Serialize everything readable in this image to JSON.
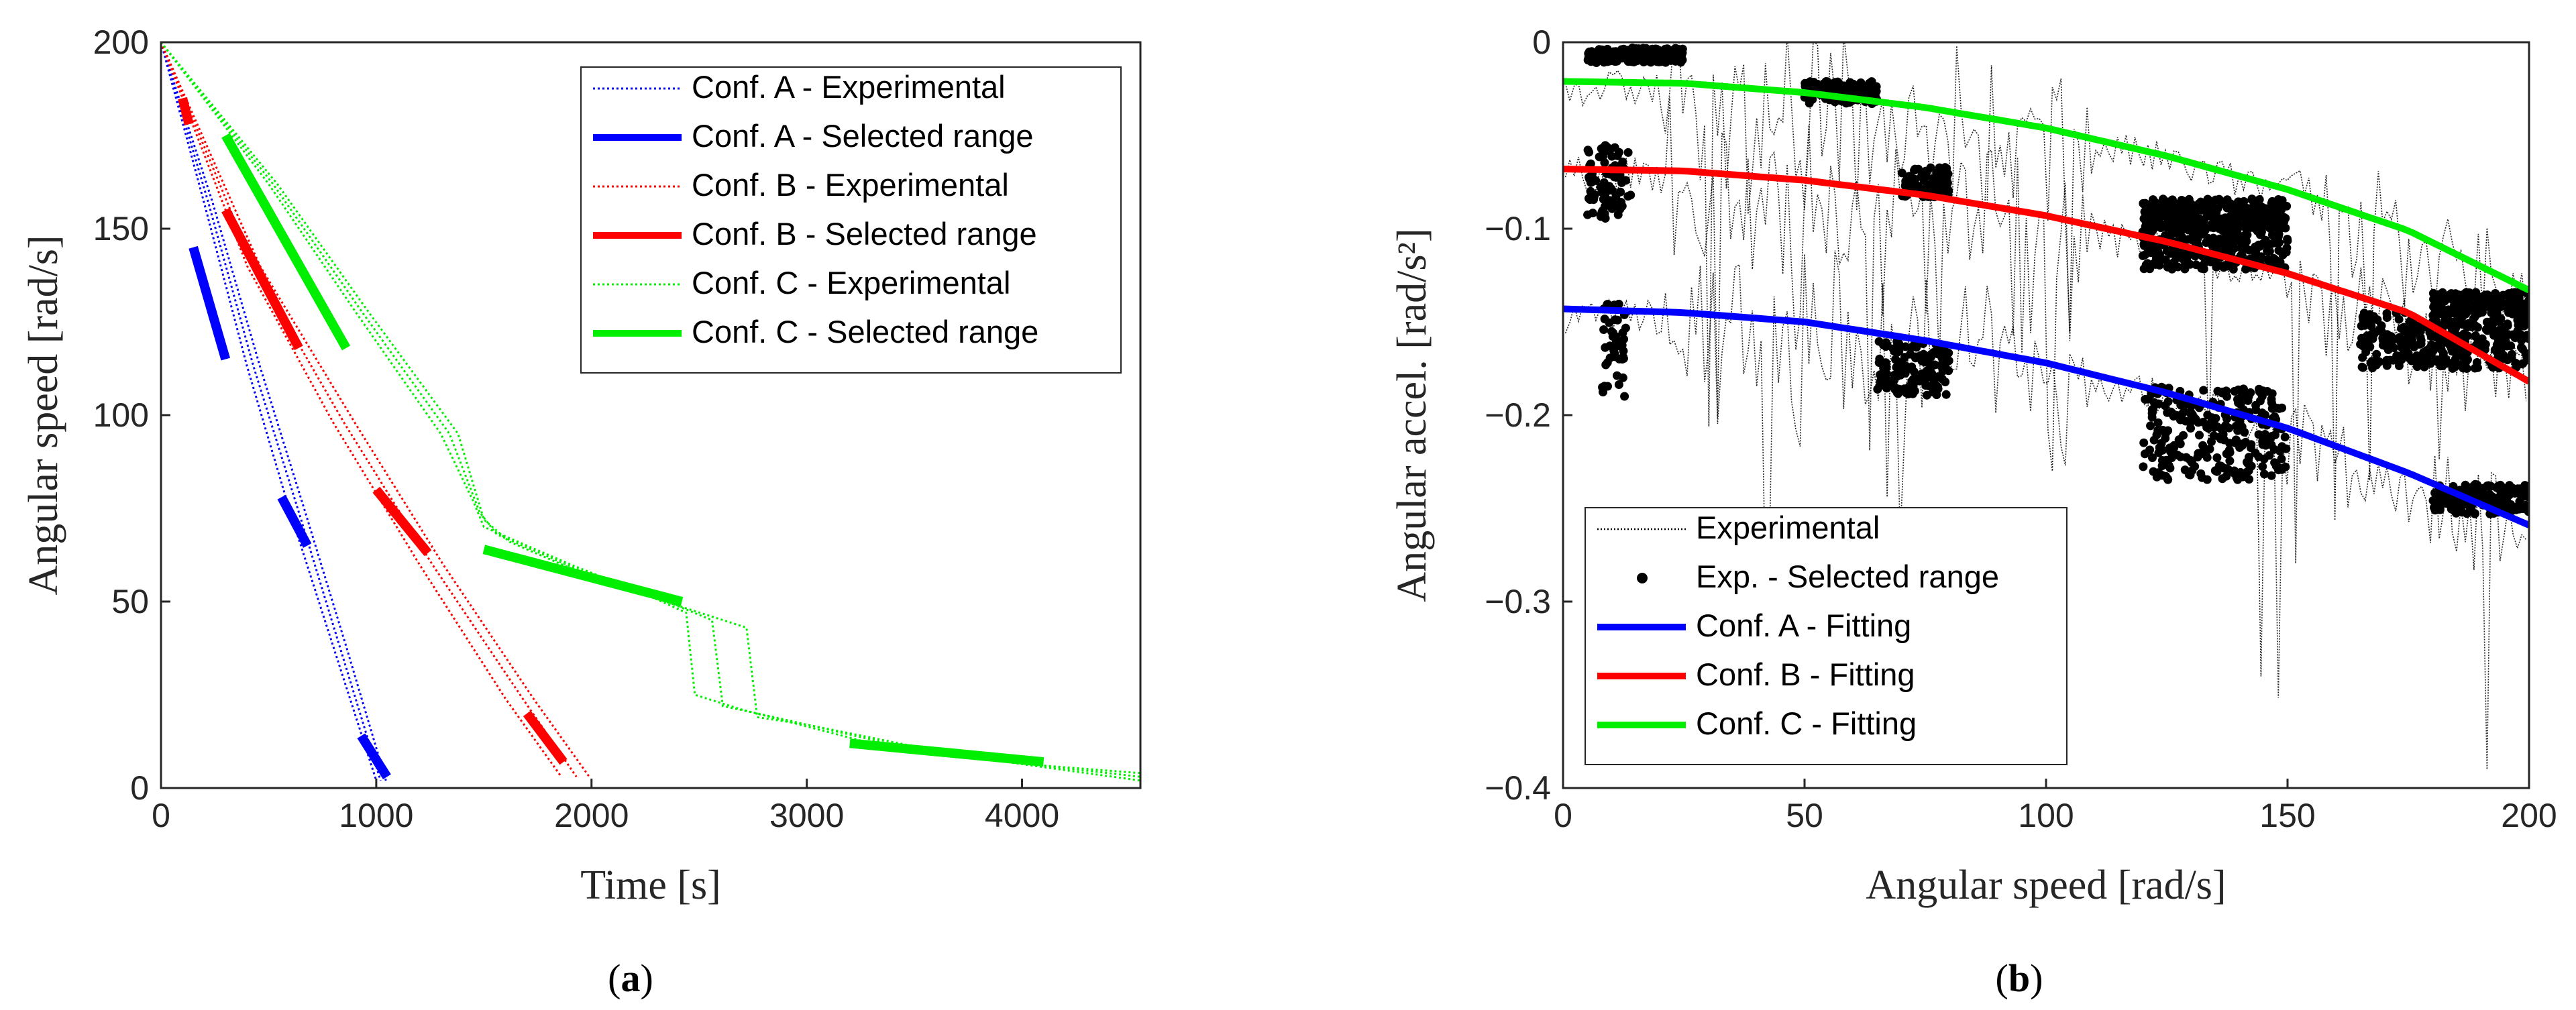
{
  "chart_data": [
    {
      "type": "line",
      "caption_letter": "a",
      "xlabel": "Time [s]",
      "ylabel": "Angular speed [rad/s]",
      "xlim": [
        0,
        4550
      ],
      "ylim": [
        0,
        200
      ],
      "xticks": [
        0,
        1000,
        2000,
        3000,
        4000
      ],
      "yticks": [
        0,
        50,
        100,
        150,
        200
      ],
      "legend_position": "top-right",
      "series": [
        {
          "name": "Conf. A - Experimental",
          "color": "#0000ff",
          "style": "dotted",
          "runs": [
            [
              [
                0,
                200
              ],
              [
                200,
                157
              ],
              [
                400,
                113
              ],
              [
                600,
                74
              ],
              [
                800,
                38
              ],
              [
                1000,
                2
              ]
            ],
            [
              [
                0,
                200
              ],
              [
                220,
                157
              ],
              [
                430,
                113
              ],
              [
                640,
                74
              ],
              [
                830,
                38
              ],
              [
                1020,
                2
              ]
            ],
            [
              [
                0,
                200
              ],
              [
                240,
                157
              ],
              [
                460,
                113
              ],
              [
                670,
                74
              ],
              [
                860,
                38
              ],
              [
                1045,
                2
              ]
            ]
          ]
        },
        {
          "name": "Conf. A - Selected range",
          "color": "#0000ff",
          "style": "solid",
          "segments": [
            [
              [
                150,
                145
              ],
              [
                300,
                115
              ]
            ],
            [
              [
                560,
                78
              ],
              [
                680,
                65
              ]
            ],
            [
              [
                930,
                14
              ],
              [
                1050,
                3
              ]
            ]
          ]
        },
        {
          "name": "Conf. B - Experimental",
          "color": "#ff0000",
          "style": "dotted",
          "runs": [
            [
              [
                0,
                200
              ],
              [
                400,
                140
              ],
              [
                800,
                98
              ],
              [
                1200,
                60
              ],
              [
                1600,
                24
              ],
              [
                1860,
                3
              ]
            ],
            [
              [
                0,
                200
              ],
              [
                430,
                140
              ],
              [
                850,
                98
              ],
              [
                1260,
                60
              ],
              [
                1680,
                24
              ],
              [
                1930,
                3
              ]
            ],
            [
              [
                0,
                200
              ],
              [
                460,
                140
              ],
              [
                900,
                98
              ],
              [
                1310,
                60
              ],
              [
                1730,
                24
              ],
              [
                1990,
                3
              ]
            ]
          ]
        },
        {
          "name": "Conf. B - Selected range",
          "color": "#ff0000",
          "style": "solid",
          "segments": [
            [
              [
                100,
                185
              ],
              [
                130,
                178
              ]
            ],
            [
              [
                300,
                155
              ],
              [
                640,
                118
              ]
            ],
            [
              [
                1000,
                80
              ],
              [
                1240,
                63
              ]
            ],
            [
              [
                1700,
                20
              ],
              [
                1870,
                7
              ]
            ]
          ]
        },
        {
          "name": "Conf. C - Experimental",
          "color": "#00ee00",
          "style": "dotted",
          "runs": [
            [
              [
                0,
                200
              ],
              [
                500,
                162
              ],
              [
                900,
                128
              ],
              [
                1300,
                95
              ],
              [
                1450,
                77
              ],
              [
                1500,
                70
              ],
              [
                1900,
                60
              ],
              [
                2250,
                52
              ],
              [
                2440,
                47
              ],
              [
                2480,
                25
              ],
              [
                2700,
                21
              ],
              [
                3300,
                12
              ],
              [
                3800,
                8
              ],
              [
                4550,
                2
              ]
            ],
            [
              [
                0,
                200
              ],
              [
                520,
                162
              ],
              [
                930,
                128
              ],
              [
                1340,
                95
              ],
              [
                1480,
                74
              ],
              [
                1560,
                68
              ],
              [
                1960,
                58
              ],
              [
                2350,
                50
              ],
              [
                2560,
                45
              ],
              [
                2610,
                22
              ],
              [
                2850,
                19
              ],
              [
                3450,
                11
              ],
              [
                3950,
                7
              ],
              [
                4550,
                3
              ]
            ],
            [
              [
                0,
                200
              ],
              [
                540,
                162
              ],
              [
                960,
                128
              ],
              [
                1380,
                95
              ],
              [
                1500,
                72
              ],
              [
                1620,
                66
              ],
              [
                2020,
                56
              ],
              [
                2450,
                48
              ],
              [
                2720,
                43
              ],
              [
                2770,
                19
              ],
              [
                3000,
                17
              ],
              [
                3600,
                10
              ],
              [
                4100,
                6
              ],
              [
                4550,
                4
              ]
            ]
          ]
        },
        {
          "name": "Conf. C - Selected range",
          "color": "#00ee00",
          "style": "solid",
          "segments": [
            [
              [
                300,
                175
              ],
              [
                860,
                118
              ]
            ],
            [
              [
                1500,
                64
              ],
              [
                2420,
                50
              ]
            ],
            [
              [
                3200,
                12
              ],
              [
                4100,
                7
              ]
            ]
          ]
        }
      ]
    },
    {
      "type": "scatter",
      "caption_letter": "b",
      "xlabel": "Angular speed [rad/s]",
      "ylabel": "Angular accel. [rad/s²]",
      "xlim": [
        0,
        200
      ],
      "ylim": [
        -0.4,
        0
      ],
      "xticks": [
        0,
        50,
        100,
        150,
        200
      ],
      "yticks": [
        0,
        -0.1,
        -0.2,
        -0.3,
        -0.4
      ],
      "legend_position": "bottom-left",
      "series": [
        {
          "name": "Experimental",
          "color": "#000000",
          "style": "dotted",
          "marker": "none"
        },
        {
          "name": "Exp. - Selected range",
          "color": "#000000",
          "style": "none",
          "marker": "dot",
          "clusters": [
            {
              "x0": 5,
              "x1": 25,
              "y": -0.007,
              "spread": 0.004
            },
            {
              "x0": 50,
              "x1": 65,
              "y": -0.027,
              "spread": 0.006
            },
            {
              "x0": 5,
              "x1": 14,
              "y": -0.075,
              "spread": 0.02
            },
            {
              "x0": 70,
              "x1": 80,
              "y": -0.075,
              "spread": 0.008
            },
            {
              "x0": 120,
              "x1": 150,
              "y": -0.092,
              "spread": 0.008
            },
            {
              "x0": 180,
              "x1": 200,
              "y": -0.14,
              "spread": 0.006
            },
            {
              "x0": 120,
              "x1": 150,
              "y": -0.11,
              "spread": 0.012
            },
            {
              "x0": 165,
              "x1": 200,
              "y": -0.16,
              "spread": 0.015
            },
            {
              "x0": 8,
              "x1": 13,
              "y": -0.165,
              "spread": 0.025
            },
            {
              "x0": 65,
              "x1": 80,
              "y": -0.175,
              "spread": 0.015
            },
            {
              "x0": 120,
              "x1": 150,
              "y": -0.21,
              "spread": 0.025
            },
            {
              "x0": 180,
              "x1": 200,
              "y": -0.245,
              "spread": 0.008
            }
          ]
        },
        {
          "name": "Conf. A - Fitting",
          "color": "#0000ff",
          "style": "solid",
          "x": [
            0,
            25,
            50,
            75,
            100,
            125,
            150,
            175,
            200
          ],
          "y": [
            -0.143,
            -0.145,
            -0.15,
            -0.16,
            -0.172,
            -0.188,
            -0.207,
            -0.231,
            -0.259
          ]
        },
        {
          "name": "Conf. B - Fitting",
          "color": "#ff0000",
          "style": "solid",
          "x": [
            0,
            25,
            50,
            75,
            100,
            125,
            150,
            175,
            200
          ],
          "y": [
            -0.068,
            -0.069,
            -0.074,
            -0.082,
            -0.093,
            -0.107,
            -0.124,
            -0.145,
            -0.182
          ]
        },
        {
          "name": "Conf. C - Fitting",
          "color": "#00ee00",
          "style": "solid",
          "x": [
            0,
            25,
            50,
            75,
            100,
            125,
            150,
            175,
            200
          ],
          "y": [
            -0.021,
            -0.022,
            -0.027,
            -0.035,
            -0.046,
            -0.061,
            -0.079,
            -0.101,
            -0.133
          ]
        }
      ]
    }
  ]
}
